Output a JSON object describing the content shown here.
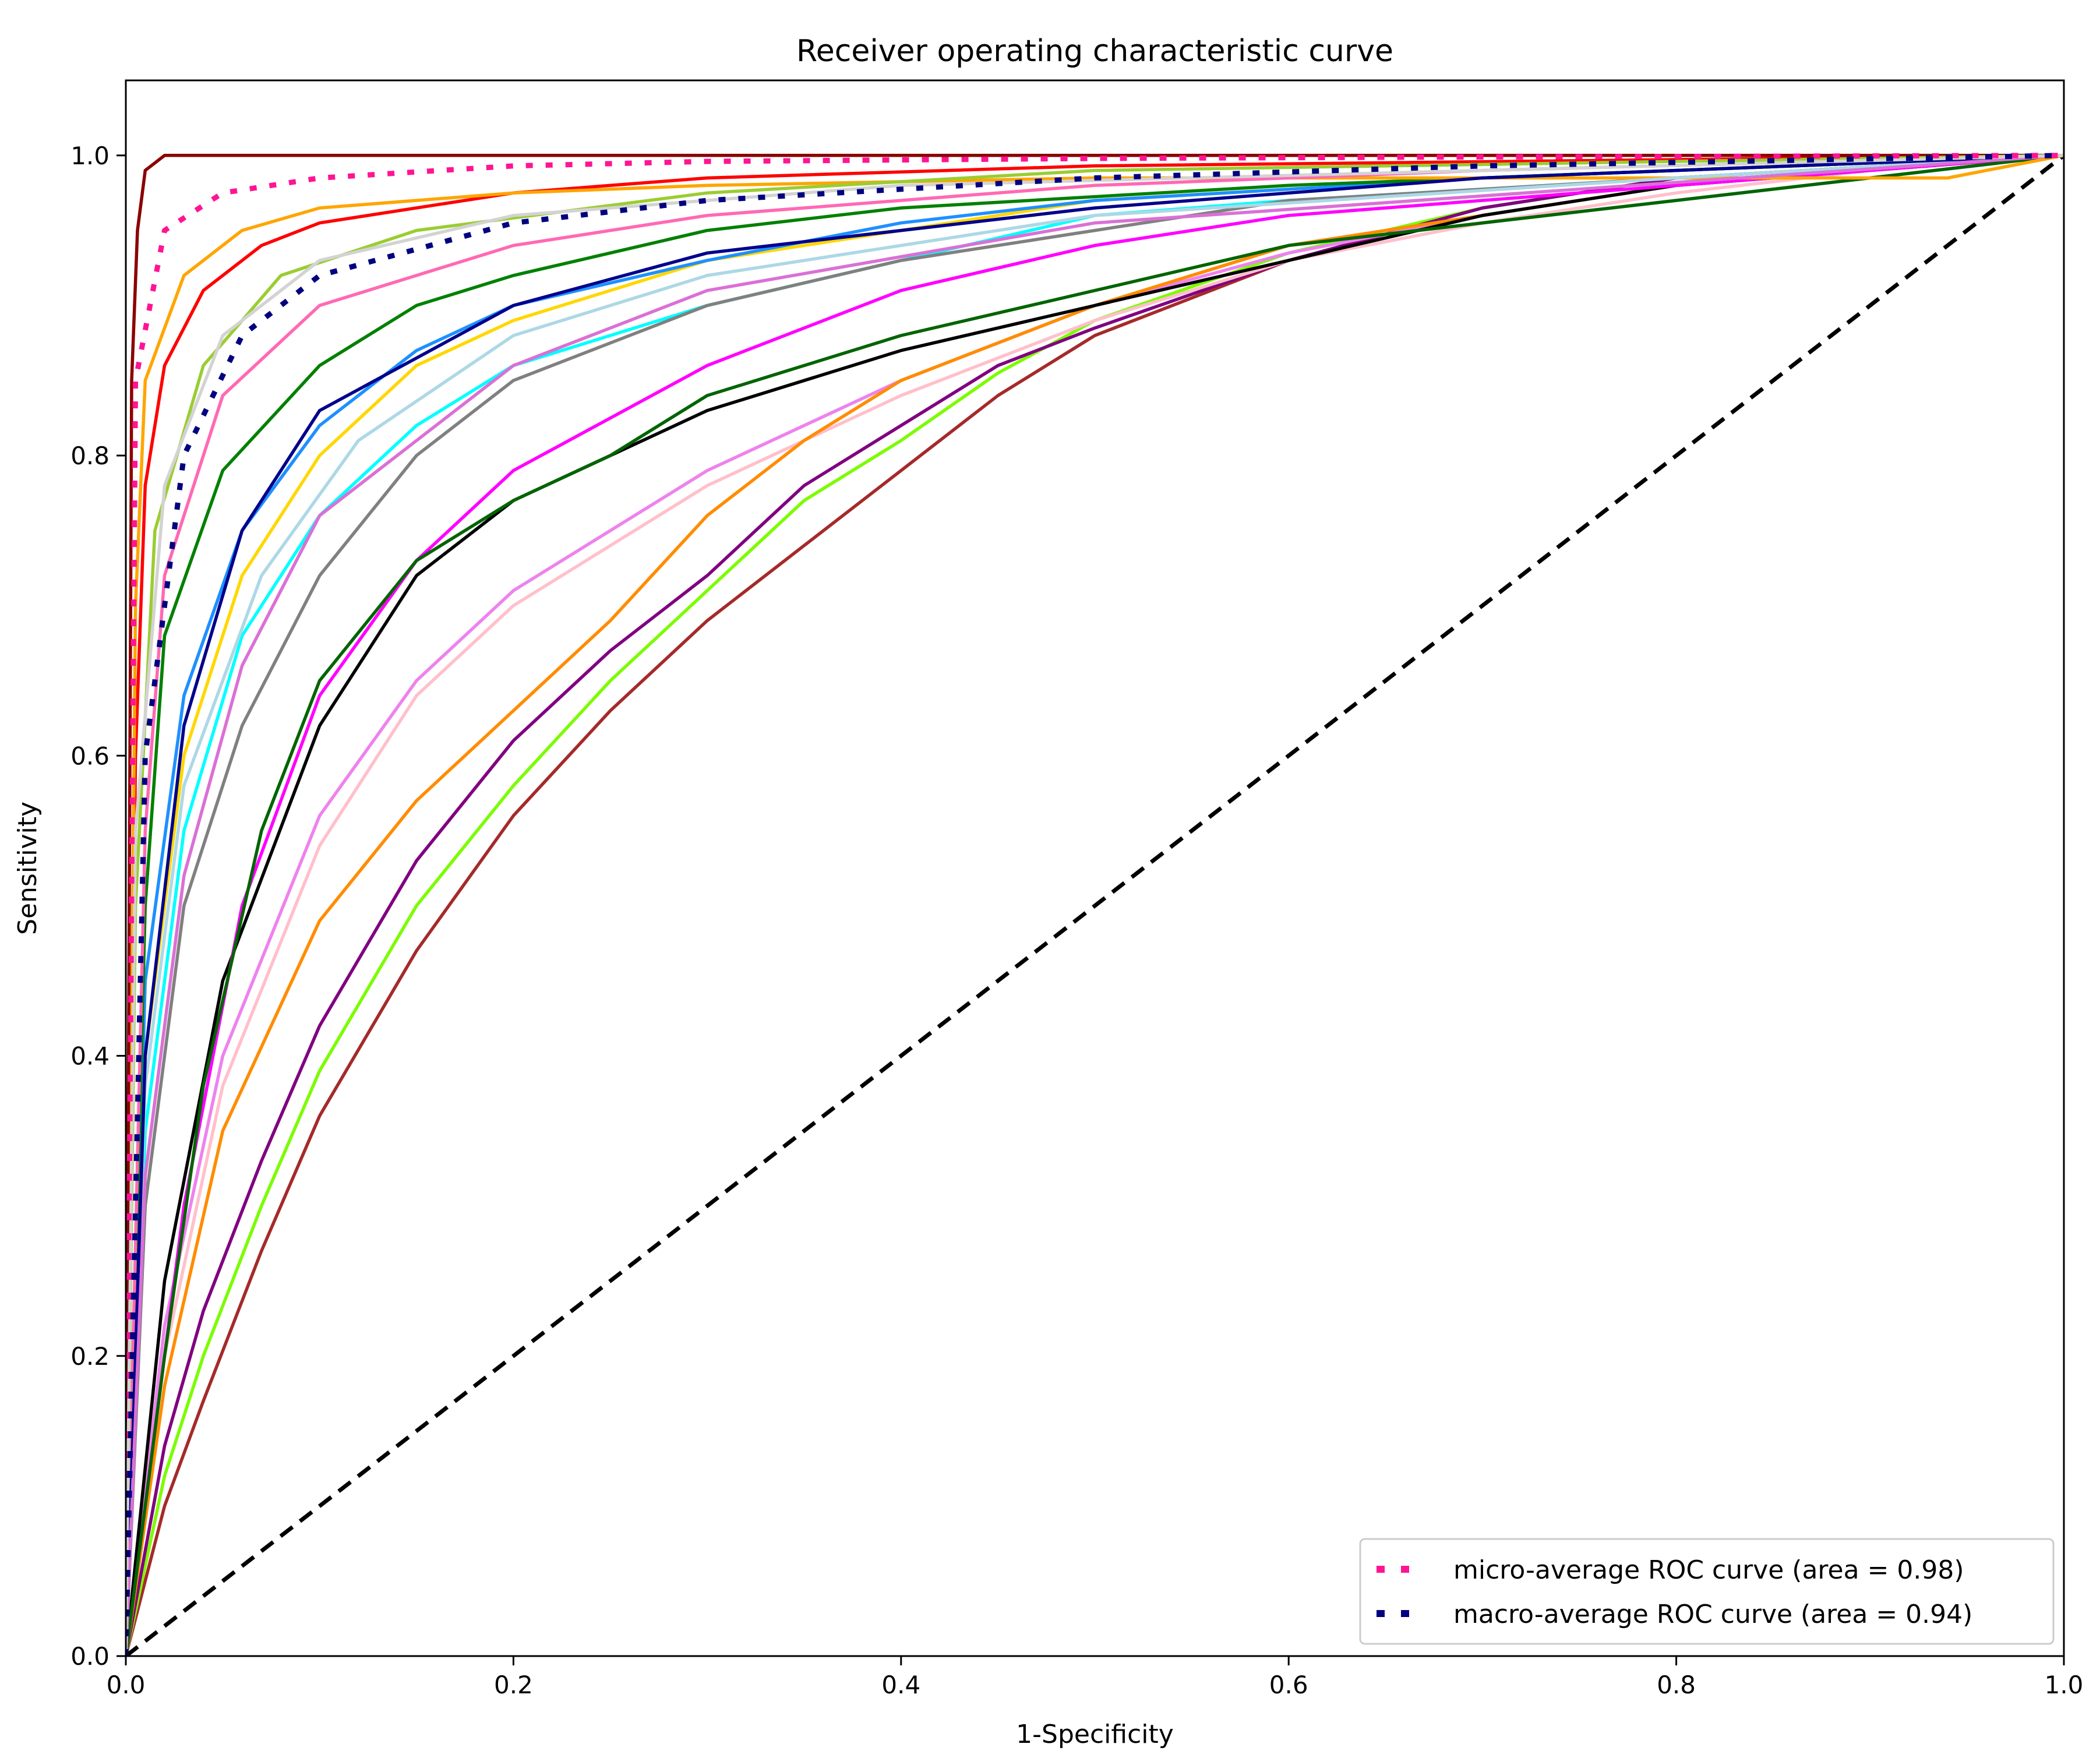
{
  "chart_data": {
    "type": "line",
    "title": "Receiver operating characteristic curve",
    "xlabel": "1-Specificity",
    "ylabel": "Sensitivity",
    "xlim": [
      0.0,
      1.0
    ],
    "ylim": [
      0.0,
      1.05
    ],
    "xticks": [
      "0.0",
      "0.2",
      "0.4",
      "0.6",
      "0.8",
      "1.0"
    ],
    "yticks": [
      "0.0",
      "0.2",
      "0.4",
      "0.6",
      "0.8",
      "1.0"
    ],
    "grid": false,
    "legend_position": "lower-right",
    "reference_line": {
      "x": [
        0,
        1
      ],
      "y": [
        0,
        1
      ],
      "style": "dashed",
      "color": "#000000"
    },
    "legend": [
      {
        "label": "micro-average ROC curve (area = 0.98)",
        "color": "#ff1493",
        "style": "dotted"
      },
      {
        "label": "macro-average ROC curve (area = 0.94)",
        "color": "#000080",
        "style": "dotted"
      }
    ],
    "series": [
      {
        "color": "#ff1493",
        "style": "dotted",
        "x": [
          0.0,
          0.005,
          0.02,
          0.05,
          0.1,
          0.2,
          0.3,
          0.5,
          0.7,
          1.0
        ],
        "y": [
          0.0,
          0.85,
          0.95,
          0.975,
          0.985,
          0.993,
          0.996,
          0.998,
          0.999,
          1.0
        ]
      },
      {
        "color": "#000080",
        "style": "dotted",
        "x": [
          0.0,
          0.01,
          0.03,
          0.06,
          0.1,
          0.2,
          0.3,
          0.5,
          0.7,
          1.0
        ],
        "y": [
          0.0,
          0.6,
          0.8,
          0.88,
          0.92,
          0.955,
          0.97,
          0.985,
          0.993,
          1.0
        ]
      },
      {
        "color": "#a52a2a",
        "x": [
          0.0,
          0.02,
          0.04,
          0.07,
          0.1,
          0.15,
          0.2,
          0.25,
          0.3,
          0.35,
          0.4,
          0.45,
          0.5,
          0.6,
          0.7,
          0.8,
          1.0
        ],
        "y": [
          0.0,
          0.1,
          0.17,
          0.27,
          0.36,
          0.47,
          0.56,
          0.63,
          0.69,
          0.74,
          0.79,
          0.84,
          0.88,
          0.93,
          0.965,
          0.985,
          1.0
        ]
      },
      {
        "color": "#7cfc00",
        "x": [
          0.0,
          0.02,
          0.04,
          0.07,
          0.1,
          0.15,
          0.2,
          0.25,
          0.3,
          0.35,
          0.4,
          0.45,
          0.5,
          0.6,
          0.7,
          0.8,
          1.0
        ],
        "y": [
          0.0,
          0.12,
          0.2,
          0.3,
          0.39,
          0.5,
          0.58,
          0.65,
          0.71,
          0.77,
          0.81,
          0.855,
          0.89,
          0.935,
          0.965,
          0.985,
          1.0
        ]
      },
      {
        "color": "#800080",
        "x": [
          0.0,
          0.02,
          0.04,
          0.07,
          0.1,
          0.15,
          0.2,
          0.25,
          0.3,
          0.35,
          0.4,
          0.45,
          0.5,
          0.6,
          0.7,
          0.8,
          1.0
        ],
        "y": [
          0.0,
          0.14,
          0.23,
          0.33,
          0.42,
          0.53,
          0.61,
          0.67,
          0.72,
          0.78,
          0.82,
          0.86,
          0.885,
          0.93,
          0.965,
          0.985,
          1.0
        ]
      },
      {
        "color": "#ffc0cb",
        "x": [
          0.0,
          0.02,
          0.05,
          0.1,
          0.15,
          0.2,
          0.3,
          0.4,
          0.5,
          0.6,
          0.7,
          0.8,
          0.9,
          1.0
        ],
        "y": [
          0.0,
          0.2,
          0.38,
          0.54,
          0.64,
          0.7,
          0.78,
          0.84,
          0.89,
          0.93,
          0.955,
          0.975,
          0.99,
          1.0
        ]
      },
      {
        "color": "#ee82ee",
        "x": [
          0.0,
          0.02,
          0.05,
          0.1,
          0.15,
          0.2,
          0.3,
          0.4,
          0.5,
          0.6,
          0.7,
          0.8,
          1.0
        ],
        "y": [
          0.0,
          0.22,
          0.4,
          0.56,
          0.65,
          0.71,
          0.79,
          0.85,
          0.9,
          0.935,
          0.96,
          0.98,
          1.0
        ]
      },
      {
        "color": "#ff8c00",
        "x": [
          0.0,
          0.02,
          0.05,
          0.1,
          0.15,
          0.2,
          0.25,
          0.3,
          0.35,
          0.4,
          0.5,
          0.6,
          0.7,
          0.8,
          1.0
        ],
        "y": [
          0.0,
          0.18,
          0.35,
          0.49,
          0.57,
          0.63,
          0.69,
          0.76,
          0.81,
          0.85,
          0.9,
          0.94,
          0.96,
          0.98,
          1.0
        ]
      },
      {
        "color": "#000000",
        "x": [
          0.0,
          0.02,
          0.05,
          0.1,
          0.15,
          0.2,
          0.3,
          0.4,
          0.5,
          0.6,
          0.7,
          0.8,
          1.0
        ],
        "y": [
          0.0,
          0.25,
          0.45,
          0.62,
          0.72,
          0.77,
          0.83,
          0.87,
          0.9,
          0.93,
          0.96,
          0.98,
          1.0
        ]
      },
      {
        "color": "#ff00ff",
        "x": [
          0.0,
          0.01,
          0.03,
          0.06,
          0.1,
          0.15,
          0.2,
          0.3,
          0.4,
          0.5,
          0.6,
          1.0
        ],
        "y": [
          0.0,
          0.1,
          0.3,
          0.5,
          0.64,
          0.73,
          0.79,
          0.86,
          0.91,
          0.94,
          0.96,
          1.0
        ]
      },
      {
        "color": "#006400",
        "x": [
          0.0,
          0.02,
          0.04,
          0.07,
          0.1,
          0.15,
          0.2,
          0.25,
          0.3,
          0.4,
          0.5,
          0.6,
          1.0
        ],
        "y": [
          0.0,
          0.2,
          0.38,
          0.55,
          0.65,
          0.73,
          0.77,
          0.8,
          0.84,
          0.88,
          0.91,
          0.94,
          1.0
        ]
      },
      {
        "color": "#00ffff",
        "x": [
          0.0,
          0.01,
          0.03,
          0.06,
          0.1,
          0.15,
          0.2,
          0.3,
          0.4,
          0.5,
          0.6,
          1.0
        ],
        "y": [
          0.0,
          0.35,
          0.55,
          0.68,
          0.76,
          0.82,
          0.86,
          0.9,
          0.93,
          0.96,
          0.97,
          1.0
        ]
      },
      {
        "color": "#808080",
        "x": [
          0.0,
          0.01,
          0.03,
          0.06,
          0.1,
          0.15,
          0.2,
          0.3,
          0.4,
          0.5,
          0.6,
          0.8,
          1.0
        ],
        "y": [
          0.0,
          0.3,
          0.5,
          0.62,
          0.72,
          0.8,
          0.85,
          0.9,
          0.93,
          0.95,
          0.97,
          0.985,
          1.0
        ]
      },
      {
        "color": "#ffd700",
        "x": [
          0.0,
          0.01,
          0.03,
          0.06,
          0.1,
          0.15,
          0.2,
          0.3,
          0.4,
          0.5,
          0.7,
          1.0
        ],
        "y": [
          0.0,
          0.4,
          0.6,
          0.72,
          0.8,
          0.86,
          0.89,
          0.93,
          0.95,
          0.97,
          0.985,
          1.0
        ]
      },
      {
        "color": "#1e90ff",
        "x": [
          0.0,
          0.01,
          0.03,
          0.06,
          0.1,
          0.15,
          0.2,
          0.3,
          0.4,
          0.5,
          0.7,
          1.0
        ],
        "y": [
          0.0,
          0.45,
          0.64,
          0.75,
          0.82,
          0.87,
          0.9,
          0.93,
          0.955,
          0.97,
          0.985,
          1.0
        ]
      },
      {
        "color": "#008000",
        "x": [
          0.0,
          0.01,
          0.02,
          0.05,
          0.1,
          0.15,
          0.2,
          0.3,
          0.4,
          0.6,
          1.0
        ],
        "y": [
          0.0,
          0.5,
          0.68,
          0.79,
          0.86,
          0.9,
          0.92,
          0.95,
          0.965,
          0.98,
          1.0
        ]
      },
      {
        "color": "#ff0000",
        "x": [
          0.0,
          0.005,
          0.01,
          0.02,
          0.04,
          0.07,
          0.1,
          0.2,
          0.3,
          0.5,
          1.0
        ],
        "y": [
          0.0,
          0.6,
          0.78,
          0.86,
          0.91,
          0.94,
          0.955,
          0.975,
          0.985,
          0.993,
          1.0
        ]
      },
      {
        "color": "#ffa500",
        "x": [
          0.0,
          0.005,
          0.01,
          0.03,
          0.06,
          0.1,
          0.2,
          0.3,
          0.5,
          0.94,
          1.0
        ],
        "y": [
          0.0,
          0.7,
          0.85,
          0.92,
          0.95,
          0.965,
          0.975,
          0.98,
          0.985,
          0.985,
          1.0
        ]
      },
      {
        "color": "#8b0000",
        "x": [
          0.0,
          0.003,
          0.006,
          0.01,
          0.02,
          0.05,
          0.1,
          0.2,
          0.5,
          1.0
        ],
        "y": [
          0.0,
          0.85,
          0.95,
          0.99,
          1.0,
          1.0,
          1.0,
          1.0,
          1.0,
          1.0
        ]
      },
      {
        "color": "#ff69b4",
        "x": [
          0.0,
          0.01,
          0.02,
          0.05,
          0.1,
          0.2,
          0.3,
          0.5,
          0.7,
          1.0
        ],
        "y": [
          0.0,
          0.55,
          0.72,
          0.84,
          0.9,
          0.94,
          0.96,
          0.98,
          0.99,
          1.0
        ]
      },
      {
        "color": "#add8e6",
        "x": [
          0.0,
          0.01,
          0.03,
          0.07,
          0.12,
          0.2,
          0.3,
          0.5,
          0.8,
          1.0
        ],
        "y": [
          0.0,
          0.38,
          0.58,
          0.72,
          0.81,
          0.88,
          0.92,
          0.96,
          0.985,
          1.0
        ]
      },
      {
        "color": "#9acd32",
        "x": [
          0.0,
          0.005,
          0.015,
          0.04,
          0.08,
          0.15,
          0.3,
          0.5,
          1.0
        ],
        "y": [
          0.0,
          0.5,
          0.75,
          0.86,
          0.92,
          0.95,
          0.975,
          0.99,
          1.0
        ]
      },
      {
        "color": "#00008b",
        "x": [
          0.0,
          0.01,
          0.03,
          0.06,
          0.1,
          0.2,
          0.3,
          0.5,
          0.7,
          1.0
        ],
        "y": [
          0.0,
          0.4,
          0.62,
          0.75,
          0.83,
          0.9,
          0.935,
          0.965,
          0.985,
          1.0
        ]
      },
      {
        "color": "#da70d6",
        "x": [
          0.0,
          0.01,
          0.03,
          0.06,
          0.1,
          0.2,
          0.3,
          0.5,
          1.0
        ],
        "y": [
          0.0,
          0.32,
          0.52,
          0.66,
          0.76,
          0.86,
          0.91,
          0.955,
          1.0
        ]
      },
      {
        "color": "#d3d3d3",
        "x": [
          0.0,
          0.005,
          0.02,
          0.05,
          0.1,
          0.2,
          0.4,
          0.7,
          1.0
        ],
        "y": [
          0.0,
          0.55,
          0.78,
          0.88,
          0.93,
          0.96,
          0.98,
          0.99,
          1.0
        ]
      }
    ]
  }
}
